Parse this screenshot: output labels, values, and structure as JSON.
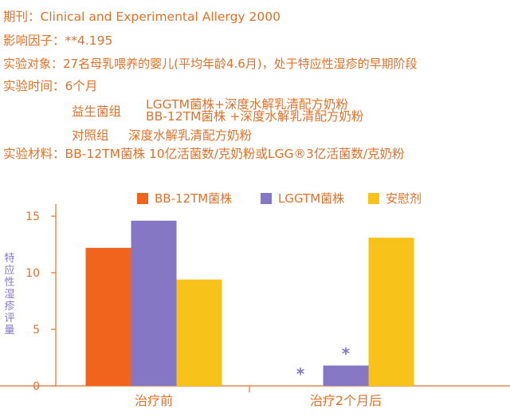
{
  "info": {
    "journal_label": "期刊：",
    "journal_value": "Clinical and Experimental Allergy 2000",
    "impact_label": "影响因子：",
    "impact_value": "**4.195",
    "subject_label": "实验对象：",
    "subject_value": "27名母乳喂养的婴儿(平均年龄4.6月)，处于特应性湿疹的早期阶段",
    "duration_label": "实验时间：",
    "duration_value": "6个月",
    "probiotic_group_label": "益生菌组",
    "probiotic_line1": "LGGTM菌株+深度水解乳清配方奶粉",
    "probiotic_line2": "BB-12TM菌株 +深度水解乳清配方奶粉",
    "control_group_label": "对照组",
    "control_value": "深度水解乳清配方奶粉",
    "material_label": "实验材料：",
    "material_value": "BB-12TM菌株  10亿活菌数/克奶粉或LGG®3亿活菌数/克奶粉"
  },
  "chart_data": {
    "type": "bar",
    "categories": [
      "治疗前",
      "治疗2个月后"
    ],
    "series": [
      {
        "name": "BB-12TM菌株",
        "color": "#f0641e",
        "values": [
          12.2,
          0
        ]
      },
      {
        "name": "LGGTM菌株",
        "color": "#8577c4",
        "values": [
          14.6,
          1.8
        ]
      },
      {
        "name": "安慰剂",
        "color": "#f7c21a",
        "values": [
          9.4,
          13.1
        ]
      }
    ],
    "ylabel": "特应性湿疹评量",
    "yticks": [
      0,
      5,
      10,
      15
    ],
    "ylim": [
      0,
      15.5
    ],
    "annotations": [
      {
        "text": "*",
        "category": "治疗2个月后",
        "series": "BB-12TM菌株"
      },
      {
        "text": "*",
        "category": "治疗2个月后",
        "series": "LGGTM菌株"
      }
    ],
    "legend_position": "top"
  }
}
